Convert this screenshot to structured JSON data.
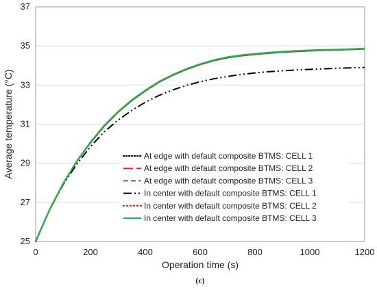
{
  "chart_data": {
    "type": "line",
    "title": "",
    "caption": "(c)",
    "xlabel": "Operation time (s)",
    "ylabel": "Average temperature (°C)",
    "xlim": [
      0,
      1200
    ],
    "ylim": [
      25,
      37
    ],
    "xticks": [
      0,
      200,
      400,
      600,
      800,
      1000,
      1200
    ],
    "yticks": [
      25,
      27,
      29,
      31,
      33,
      35,
      37
    ],
    "grid": "horizontal",
    "legend": "bottom-right",
    "x": [
      0,
      50,
      100,
      150,
      200,
      250,
      300,
      350,
      400,
      450,
      500,
      550,
      600,
      650,
      700,
      750,
      800,
      850,
      900,
      950,
      1000,
      1050,
      1100,
      1150,
      1200
    ],
    "series": [
      {
        "name": "At edge with default composite BTMS: CELL 1",
        "color": "#000000",
        "dash": "dotted",
        "values": [
          25.0,
          26.6,
          27.95,
          29.1,
          30.05,
          30.9,
          31.6,
          32.2,
          32.7,
          33.15,
          33.5,
          33.8,
          34.05,
          34.25,
          34.4,
          34.5,
          34.57,
          34.63,
          34.68,
          34.72,
          34.75,
          34.78,
          34.8,
          34.82,
          34.85
        ]
      },
      {
        "name": "At edge with default composite BTMS: CELL 2",
        "color": "#e3262d",
        "dash": "longdash",
        "values": [
          25.0,
          26.6,
          27.95,
          29.1,
          30.05,
          30.9,
          31.6,
          32.2,
          32.7,
          33.15,
          33.5,
          33.8,
          34.05,
          34.25,
          34.4,
          34.5,
          34.57,
          34.63,
          34.68,
          34.72,
          34.75,
          34.78,
          34.8,
          34.82,
          34.85
        ]
      },
      {
        "name": "At edge with default composite BTMS: CELL 3",
        "color": "#7a3fc4",
        "dash": "dash",
        "values": [
          25.0,
          26.6,
          27.95,
          29.1,
          30.05,
          30.9,
          31.6,
          32.2,
          32.7,
          33.15,
          33.5,
          33.8,
          34.05,
          34.25,
          34.4,
          34.5,
          34.57,
          34.63,
          34.68,
          34.72,
          34.75,
          34.78,
          34.8,
          34.82,
          34.85
        ]
      },
      {
        "name": "In center with default composite BTMS: CELL 1",
        "color": "#000000",
        "dash": "dashdotdot",
        "values": [
          25.0,
          26.6,
          27.9,
          28.95,
          29.85,
          30.6,
          31.2,
          31.7,
          32.12,
          32.47,
          32.75,
          32.98,
          33.17,
          33.32,
          33.44,
          33.54,
          33.62,
          33.68,
          33.73,
          33.77,
          33.8,
          33.83,
          33.86,
          33.88,
          33.9
        ]
      },
      {
        "name": "In center with default composite BTMS: CELL 2",
        "color": "#a0522d",
        "dash": "dotted-thick",
        "values": [
          25.0,
          26.6,
          27.95,
          29.1,
          30.05,
          30.9,
          31.6,
          32.2,
          32.7,
          33.15,
          33.5,
          33.8,
          34.05,
          34.25,
          34.4,
          34.5,
          34.57,
          34.63,
          34.68,
          34.72,
          34.75,
          34.78,
          34.8,
          34.82,
          34.85
        ]
      },
      {
        "name": "In center with default composite BTMS: CELL 3",
        "color": "#22b14c",
        "dash": "solid",
        "values": [
          25.0,
          26.6,
          27.95,
          29.1,
          30.08,
          30.93,
          31.63,
          32.23,
          32.73,
          33.18,
          33.53,
          33.83,
          34.08,
          34.28,
          34.43,
          34.53,
          34.6,
          34.66,
          34.71,
          34.75,
          34.78,
          34.8,
          34.82,
          34.84,
          34.87
        ]
      }
    ]
  }
}
